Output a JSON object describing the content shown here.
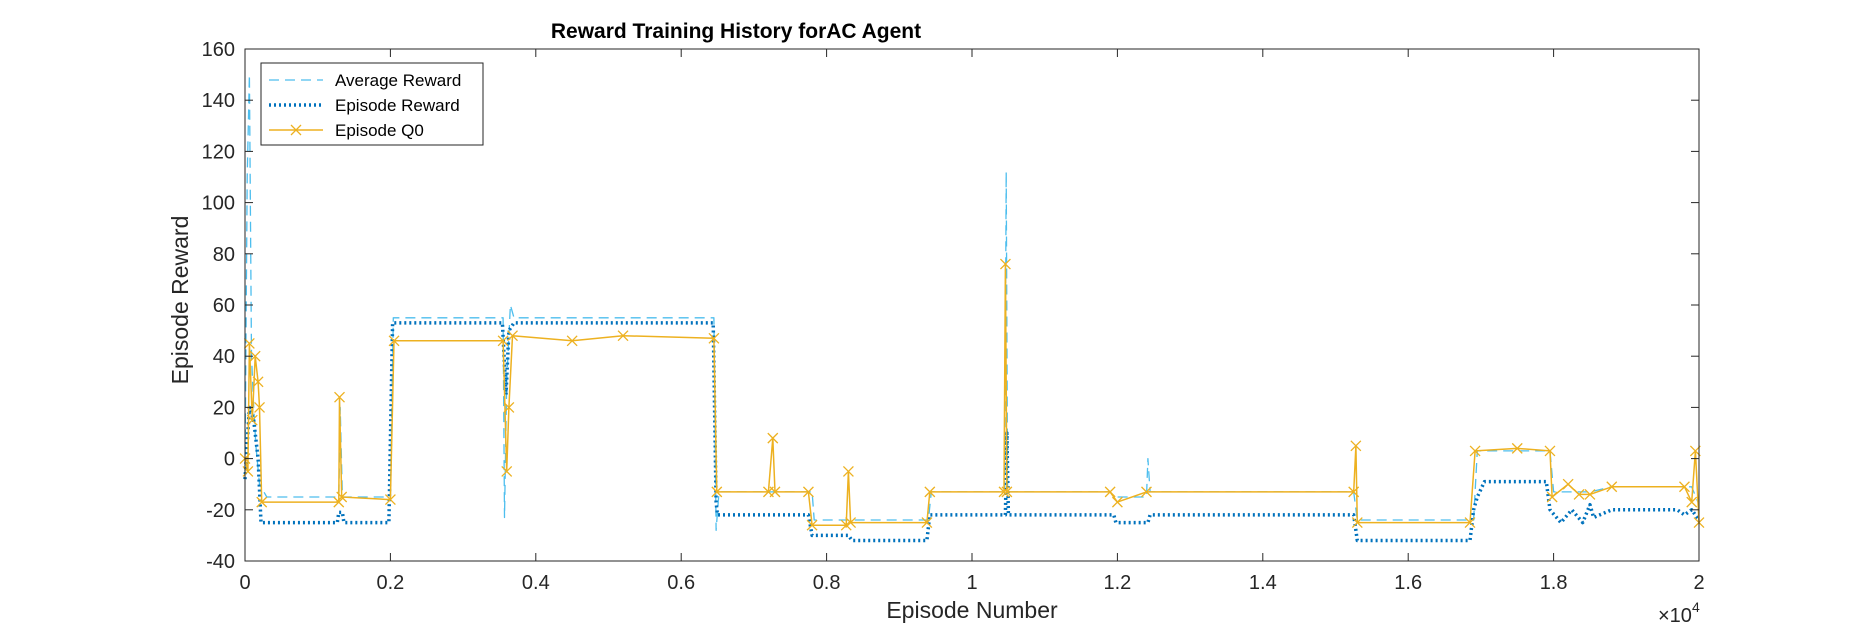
{
  "chart_data": {
    "type": "line",
    "title": "Reward Training History forAC Agent",
    "xlabel": "Episode Number",
    "ylabel": "Episode Reward",
    "x_exponent_label": "×10",
    "x_exponent_power": "4",
    "xlim": [
      0,
      20000
    ],
    "ylim": [
      -40,
      160
    ],
    "x_ticks": [
      0,
      2000,
      4000,
      6000,
      8000,
      10000,
      12000,
      14000,
      16000,
      18000,
      20000
    ],
    "x_tick_labels": [
      "0",
      "0.2",
      "0.4",
      "0.6",
      "0.8",
      "1",
      "1.2",
      "1.4",
      "1.6",
      "1.8",
      "2"
    ],
    "y_ticks": [
      -40,
      -20,
      0,
      20,
      40,
      60,
      80,
      100,
      120,
      140,
      160
    ],
    "y_tick_labels": [
      "-40",
      "-20",
      "0",
      "20",
      "40",
      "60",
      "80",
      "100",
      "120",
      "140",
      "160"
    ],
    "grid": false,
    "legend_position": "top-left",
    "series": [
      {
        "name": "Average Reward",
        "color": "#4DBEEE",
        "style": "dashed",
        "points": [
          [
            0,
            -5
          ],
          [
            30,
            110
          ],
          [
            60,
            150
          ],
          [
            90,
            40
          ],
          [
            120,
            20
          ],
          [
            150,
            5
          ],
          [
            200,
            -10
          ],
          [
            300,
            -15
          ],
          [
            1290,
            -15
          ],
          [
            1310,
            20
          ],
          [
            1340,
            -15
          ],
          [
            2000,
            -15
          ],
          [
            2040,
            55
          ],
          [
            3550,
            55
          ],
          [
            3570,
            -23
          ],
          [
            3600,
            30
          ],
          [
            3650,
            60
          ],
          [
            3700,
            55
          ],
          [
            4000,
            55
          ],
          [
            4500,
            55
          ],
          [
            5000,
            55
          ],
          [
            6450,
            55
          ],
          [
            6480,
            -28
          ],
          [
            6520,
            -13
          ],
          [
            7800,
            -13
          ],
          [
            7830,
            -24
          ],
          [
            9400,
            -24
          ],
          [
            9440,
            -13
          ],
          [
            10450,
            -13
          ],
          [
            10470,
            112
          ],
          [
            10490,
            -13
          ],
          [
            11900,
            -13
          ],
          [
            11950,
            -15
          ],
          [
            12400,
            -15
          ],
          [
            12420,
            0
          ],
          [
            12450,
            -13
          ],
          [
            15250,
            -13
          ],
          [
            15300,
            -24
          ],
          [
            16900,
            -24
          ],
          [
            16950,
            3
          ],
          [
            17950,
            3
          ],
          [
            18000,
            -13
          ],
          [
            18500,
            -13
          ],
          [
            18800,
            -11
          ],
          [
            19900,
            -11
          ],
          [
            20000,
            -18
          ]
        ]
      },
      {
        "name": "Episode Reward",
        "color": "#0072BD",
        "style": "dotted",
        "points": [
          [
            0,
            -8
          ],
          [
            60,
            20
          ],
          [
            120,
            15
          ],
          [
            180,
            0
          ],
          [
            220,
            -25
          ],
          [
            1270,
            -25
          ],
          [
            1290,
            -21
          ],
          [
            1340,
            -21
          ],
          [
            1360,
            -25
          ],
          [
            1980,
            -25
          ],
          [
            2030,
            53
          ],
          [
            3540,
            53
          ],
          [
            3590,
            25
          ],
          [
            3630,
            50
          ],
          [
            3700,
            53
          ],
          [
            6440,
            53
          ],
          [
            6480,
            -17
          ],
          [
            6500,
            -22
          ],
          [
            7750,
            -22
          ],
          [
            7800,
            -30
          ],
          [
            8300,
            -30
          ],
          [
            8350,
            -32
          ],
          [
            9380,
            -32
          ],
          [
            9420,
            -22
          ],
          [
            10460,
            -22
          ],
          [
            10480,
            10
          ],
          [
            10500,
            -22
          ],
          [
            11950,
            -22
          ],
          [
            11980,
            -25
          ],
          [
            12420,
            -25
          ],
          [
            12450,
            -22
          ],
          [
            15250,
            -22
          ],
          [
            15300,
            -32
          ],
          [
            16850,
            -32
          ],
          [
            16900,
            -20
          ],
          [
            16950,
            -15
          ],
          [
            17050,
            -9
          ],
          [
            17900,
            -9
          ],
          [
            17950,
            -20
          ],
          [
            18100,
            -25
          ],
          [
            18250,
            -20
          ],
          [
            18400,
            -25
          ],
          [
            18500,
            -18
          ],
          [
            18550,
            -23
          ],
          [
            18800,
            -20
          ],
          [
            19700,
            -20
          ],
          [
            19800,
            -22
          ],
          [
            19900,
            -20
          ],
          [
            20000,
            -24
          ]
        ]
      },
      {
        "name": "Episode Q0",
        "color": "#EDB120",
        "style": "solid-x",
        "points": [
          [
            0,
            0
          ],
          [
            40,
            -5
          ],
          [
            60,
            45
          ],
          [
            100,
            15
          ],
          [
            140,
            40
          ],
          [
            180,
            30
          ],
          [
            200,
            20
          ],
          [
            230,
            -17
          ],
          [
            1290,
            -17
          ],
          [
            1300,
            24
          ],
          [
            1330,
            -15
          ],
          [
            2000,
            -16
          ],
          [
            2050,
            46
          ],
          [
            3550,
            46
          ],
          [
            3600,
            -5
          ],
          [
            3630,
            20
          ],
          [
            3680,
            48
          ],
          [
            4500,
            46
          ],
          [
            5200,
            48
          ],
          [
            6450,
            47
          ],
          [
            6490,
            -13
          ],
          [
            7200,
            -13
          ],
          [
            7260,
            8
          ],
          [
            7290,
            -13
          ],
          [
            7750,
            -13
          ],
          [
            7800,
            -26
          ],
          [
            8270,
            -26
          ],
          [
            8300,
            -5
          ],
          [
            8330,
            -25
          ],
          [
            9380,
            -25
          ],
          [
            9420,
            -13
          ],
          [
            10440,
            -13
          ],
          [
            10460,
            76
          ],
          [
            10480,
            -13
          ],
          [
            11900,
            -13
          ],
          [
            12000,
            -17
          ],
          [
            12400,
            -13
          ],
          [
            15250,
            -13
          ],
          [
            15280,
            5
          ],
          [
            15300,
            -25
          ],
          [
            16850,
            -25
          ],
          [
            16920,
            3
          ],
          [
            17500,
            4
          ],
          [
            17950,
            3
          ],
          [
            17980,
            -15
          ],
          [
            18200,
            -10
          ],
          [
            18350,
            -14
          ],
          [
            18500,
            -14
          ],
          [
            18800,
            -11
          ],
          [
            19800,
            -11
          ],
          [
            19900,
            -17
          ],
          [
            19950,
            3
          ],
          [
            20000,
            -25
          ]
        ]
      }
    ]
  }
}
